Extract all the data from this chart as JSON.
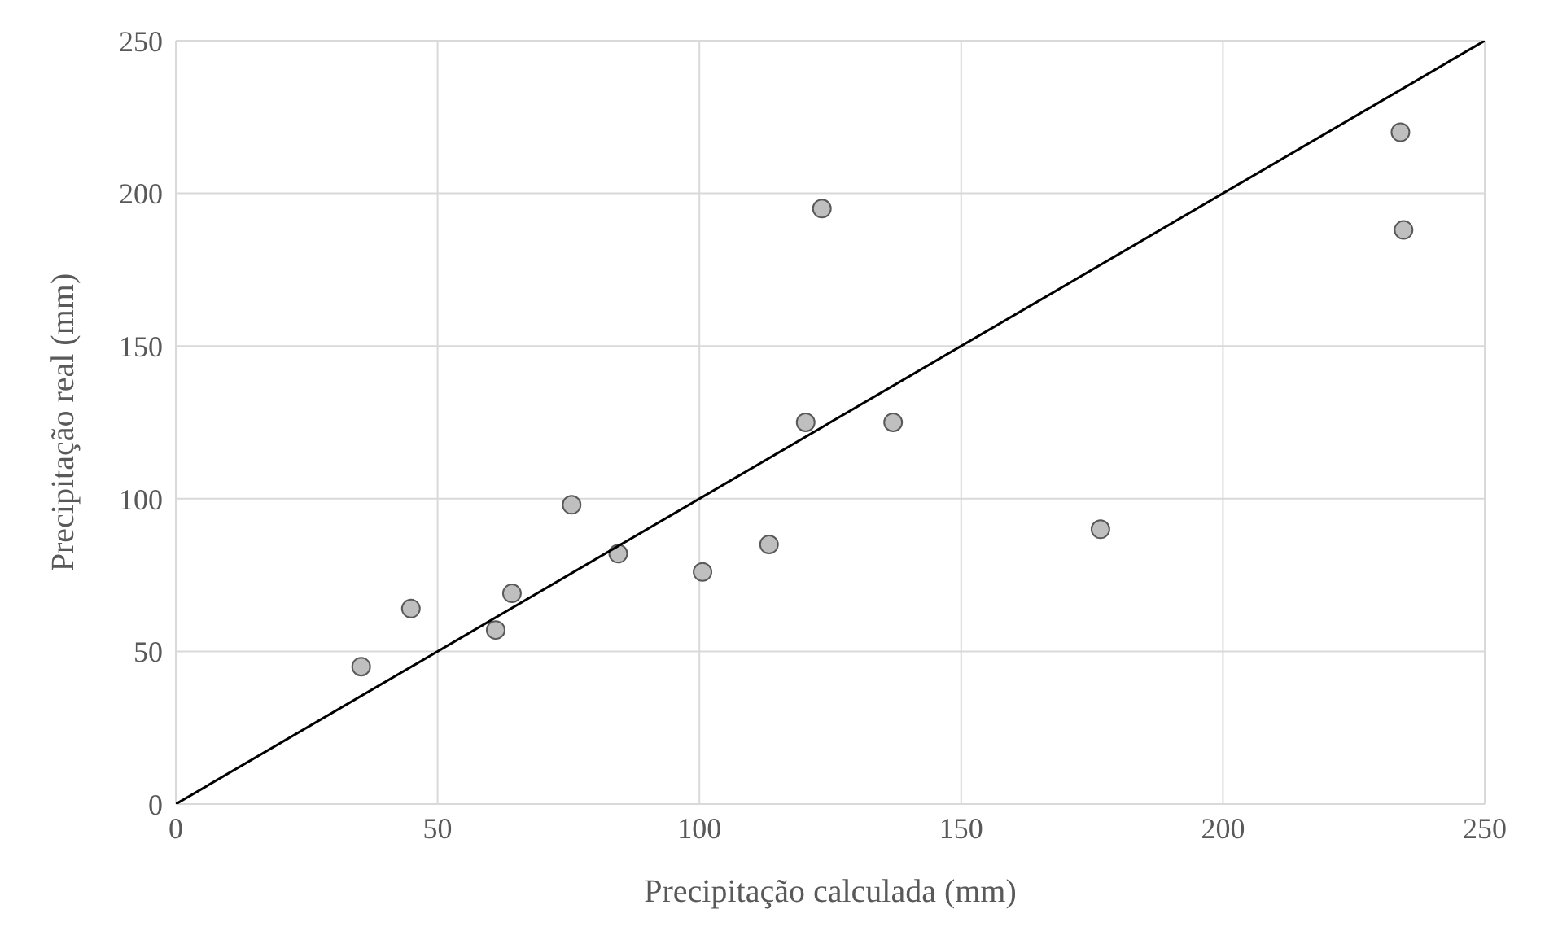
{
  "chart_data": {
    "type": "scatter",
    "xlabel": "Precipitação calculada (mm)",
    "ylabel": "Precipitação real (mm)",
    "xlim": [
      0,
      250
    ],
    "xticks": [
      0,
      50,
      100,
      150,
      200,
      250
    ],
    "ylim": [
      0,
      250
    ],
    "yticks": [
      0,
      50,
      100,
      150,
      200,
      250
    ],
    "grid": true,
    "marker": "circle",
    "series": [
      {
        "color": "#bfbfbf",
        "x": [
          35.4,
          44.9,
          61.1,
          64.2,
          75.6,
          84.5,
          100.6,
          113.3,
          120.3,
          123.4,
          137,
          176.6,
          233.9,
          234.5
        ],
        "values": [
          45,
          64,
          57,
          69,
          98,
          82,
          76,
          85,
          125,
          195,
          125,
          90,
          220,
          188
        ]
      },
      {
        "type": "line",
        "marker": "none",
        "color": "#000000",
        "x": [
          0,
          250
        ],
        "values": [
          0,
          250
        ]
      }
    ]
  }
}
